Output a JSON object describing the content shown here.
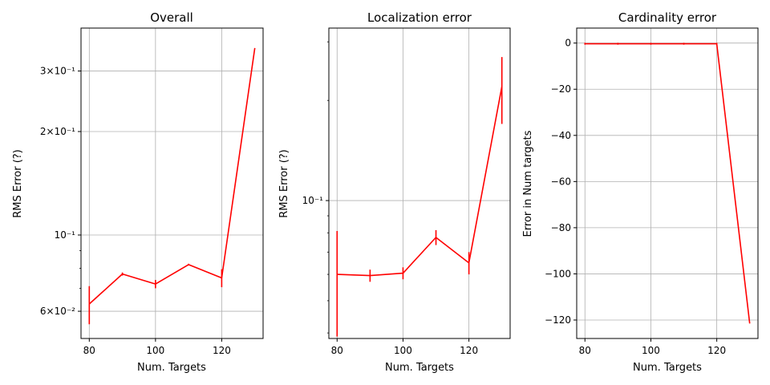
{
  "chart_data": [
    {
      "type": "line",
      "title": "Overall",
      "xlabel": "Num. Targets",
      "ylabel": "RMS Error (?)",
      "yscale": "log",
      "xlim": [
        77.5,
        132.5
      ],
      "ylim": [
        0.05,
        0.4
      ],
      "xticks": [
        80,
        100,
        120
      ],
      "yticks": [
        {
          "value": 0.06,
          "label": "6×10⁻²"
        },
        {
          "value": 0.1,
          "label": "10⁻¹"
        },
        {
          "value": 0.2,
          "label": "2×10⁻¹"
        },
        {
          "value": 0.3,
          "label": "3×10⁻¹"
        }
      ],
      "minor_yticks": [
        0.07,
        0.08,
        0.09
      ],
      "grid": true,
      "color": "#ff0000",
      "x": [
        80,
        90,
        100,
        110,
        120,
        130
      ],
      "y": [
        0.063,
        0.077,
        0.072,
        0.082,
        0.075,
        0.35
      ],
      "yerr": [
        0.008,
        0.0008,
        0.002,
        0.0005,
        0.0045,
        0.0
      ]
    },
    {
      "type": "line",
      "title": "Localization error",
      "xlabel": "Num. Targets",
      "ylabel": "RMS Error (?)",
      "yscale": "log",
      "xlim": [
        77.5,
        132.5
      ],
      "ylim": [
        0.0385,
        0.33
      ],
      "xticks": [
        80,
        100,
        120
      ],
      "yticks": [
        {
          "value": 0.1,
          "label": "10⁻¹"
        }
      ],
      "minor_yticks": [
        0.04,
        0.05,
        0.06,
        0.07,
        0.08,
        0.09,
        0.2,
        0.3
      ],
      "grid": true,
      "color": "#ff0000",
      "x": [
        80,
        90,
        100,
        110,
        120,
        130
      ],
      "y": [
        0.06,
        0.0595,
        0.0605,
        0.0775,
        0.065,
        0.22
      ],
      "yerr": [
        0.021,
        0.0025,
        0.0025,
        0.004,
        0.005,
        0.05
      ]
    },
    {
      "type": "line",
      "title": "Cardinality error",
      "xlabel": "Num. Targets",
      "ylabel": "Error in Num targets",
      "yscale": "linear",
      "xlim": [
        77.5,
        132.5
      ],
      "ylim": [
        -128,
        6.5
      ],
      "xticks": [
        80,
        100,
        120
      ],
      "yticks": [
        {
          "value": 0,
          "label": "0"
        },
        {
          "value": -20,
          "label": "−20"
        },
        {
          "value": -40,
          "label": "−40"
        },
        {
          "value": -60,
          "label": "−60"
        },
        {
          "value": -80,
          "label": "−80"
        },
        {
          "value": -100,
          "label": "−100"
        },
        {
          "value": -120,
          "label": "−120"
        }
      ],
      "minor_yticks": [],
      "grid": true,
      "color": "#ff0000",
      "x": [
        80,
        90,
        100,
        110,
        120,
        130
      ],
      "y": [
        -0.3,
        -0.3,
        -0.3,
        -0.3,
        -0.3,
        -121.5
      ],
      "yerr": [
        0.4,
        0.4,
        0.4,
        0.4,
        0.4,
        0.0
      ]
    }
  ]
}
